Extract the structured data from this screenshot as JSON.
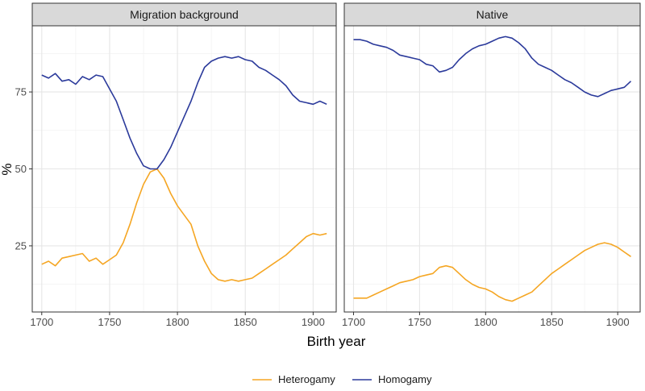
{
  "chart_data": {
    "type": "line",
    "xlabel": "Birth year",
    "ylabel": "%",
    "xlim": [
      1693,
      1917
    ],
    "ylim": [
      3.5,
      96.5
    ],
    "x_ticks": [
      1700,
      1750,
      1800,
      1850,
      1900
    ],
    "x_minor_ticks": [
      1725,
      1775,
      1825,
      1875
    ],
    "y_ticks": [
      25,
      50,
      75
    ],
    "y_minor_ticks": [
      12.5,
      37.5,
      62.5,
      87.5
    ],
    "grid": true,
    "legend_position": "bottom",
    "series_styles": [
      {
        "name": "Heterogamy",
        "color": "#F5A623"
      },
      {
        "name": "Homogamy",
        "color": "#2B3A9B"
      }
    ],
    "panels": [
      {
        "title": "Migration background",
        "series": [
          {
            "name": "Heterogamy",
            "x": [
              1700,
              1705,
              1710,
              1715,
              1720,
              1725,
              1730,
              1735,
              1740,
              1745,
              1750,
              1755,
              1760,
              1765,
              1770,
              1775,
              1780,
              1785,
              1790,
              1795,
              1800,
              1805,
              1810,
              1815,
              1820,
              1825,
              1830,
              1835,
              1840,
              1845,
              1850,
              1855,
              1860,
              1865,
              1870,
              1875,
              1880,
              1885,
              1890,
              1895,
              1900,
              1905,
              1910
            ],
            "values": [
              19,
              20,
              18.5,
              21,
              21.5,
              22,
              22.5,
              20,
              21,
              19,
              20.5,
              22,
              26,
              32,
              39,
              45,
              49,
              50,
              47,
              42,
              38,
              35,
              32,
              25,
              20,
              16,
              14,
              13.5,
              14,
              13.5,
              14,
              14.5,
              16,
              17.5,
              19,
              20.5,
              22,
              24,
              26,
              28,
              29,
              28.5,
              29
            ]
          },
          {
            "name": "Homogamy",
            "x": [
              1700,
              1705,
              1710,
              1715,
              1720,
              1725,
              1730,
              1735,
              1740,
              1745,
              1750,
              1755,
              1760,
              1765,
              1770,
              1775,
              1780,
              1785,
              1790,
              1795,
              1800,
              1805,
              1810,
              1815,
              1820,
              1825,
              1830,
              1835,
              1840,
              1845,
              1850,
              1855,
              1860,
              1865,
              1870,
              1875,
              1880,
              1885,
              1890,
              1895,
              1900,
              1905,
              1910
            ],
            "values": [
              80.5,
              79.5,
              81,
              78.5,
              79,
              77.5,
              80,
              79,
              80.5,
              80,
              76,
              72,
              66,
              60,
              55,
              51,
              50,
              50,
              53,
              57,
              62,
              67,
              72,
              78,
              83,
              85,
              86,
              86.5,
              86,
              86.5,
              85.5,
              85,
              83,
              82,
              80.5,
              79,
              77,
              74,
              72,
              71.5,
              71,
              72,
              71
            ]
          }
        ]
      },
      {
        "title": "Native",
        "series": [
          {
            "name": "Heterogamy",
            "x": [
              1700,
              1705,
              1710,
              1715,
              1720,
              1725,
              1730,
              1735,
              1740,
              1745,
              1750,
              1755,
              1760,
              1765,
              1770,
              1775,
              1780,
              1785,
              1790,
              1795,
              1800,
              1805,
              1810,
              1815,
              1820,
              1825,
              1830,
              1835,
              1840,
              1845,
              1850,
              1855,
              1860,
              1865,
              1870,
              1875,
              1880,
              1885,
              1890,
              1895,
              1900,
              1905,
              1910
            ],
            "values": [
              8,
              8,
              8,
              9,
              10,
              11,
              12,
              13,
              13.5,
              14,
              15,
              15.5,
              16,
              18,
              18.5,
              18,
              16,
              14,
              12.5,
              11.5,
              11,
              10,
              8.5,
              7.5,
              7,
              8,
              9,
              10,
              12,
              14,
              16,
              17.5,
              19,
              20.5,
              22,
              23.5,
              24.5,
              25.5,
              26,
              25.5,
              24.5,
              23,
              21.5
            ]
          },
          {
            "name": "Homogamy",
            "x": [
              1700,
              1705,
              1710,
              1715,
              1720,
              1725,
              1730,
              1735,
              1740,
              1745,
              1750,
              1755,
              1760,
              1765,
              1770,
              1775,
              1780,
              1785,
              1790,
              1795,
              1800,
              1805,
              1810,
              1815,
              1820,
              1825,
              1830,
              1835,
              1840,
              1845,
              1850,
              1855,
              1860,
              1865,
              1870,
              1875,
              1880,
              1885,
              1890,
              1895,
              1900,
              1905,
              1910
            ],
            "values": [
              92,
              92,
              91.5,
              90.5,
              90,
              89.5,
              88.5,
              87,
              86.5,
              86,
              85.5,
              84,
              83.5,
              81.5,
              82,
              83,
              85.5,
              87.5,
              89,
              90,
              90.5,
              91.5,
              92.5,
              93,
              92.5,
              91,
              89,
              86,
              84,
              83,
              82,
              80.5,
              79,
              78,
              76.5,
              75,
              74,
              73.5,
              74.5,
              75.5,
              76,
              76.5,
              78.5
            ]
          }
        ]
      }
    ]
  }
}
